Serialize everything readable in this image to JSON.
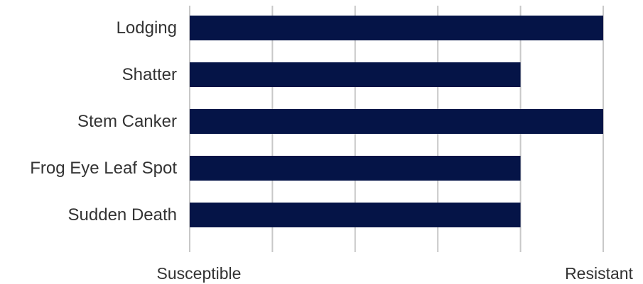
{
  "chart_data": {
    "type": "bar",
    "orientation": "horizontal",
    "categories": [
      "Lodging",
      "Shatter",
      "Stem Canker",
      "Frog Eye Leaf Spot",
      "Sudden Death"
    ],
    "values": [
      5,
      4,
      5,
      4,
      4
    ],
    "xlim": [
      0,
      5
    ],
    "x_tick_count": 6,
    "x_min_label": "Susceptible",
    "x_max_label": "Resistant",
    "grid": "vertical",
    "bar_color": "#051447",
    "grid_color": "#c8c8c8"
  }
}
